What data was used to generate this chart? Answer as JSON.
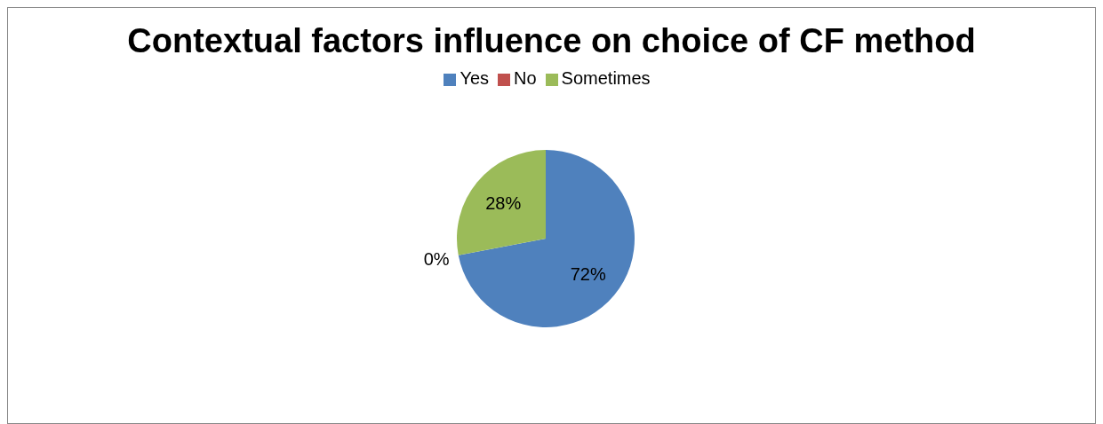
{
  "chart_data": {
    "type": "pie",
    "title": "Contextual factors influence on choice of CF method",
    "categories": [
      "Yes",
      "No",
      "Sometimes"
    ],
    "values": [
      72,
      0,
      28
    ],
    "colors": [
      "#4f81bd",
      "#c0504d",
      "#9bbb59"
    ],
    "value_labels": [
      "72%",
      "0%",
      "28%"
    ],
    "legend": "top"
  }
}
